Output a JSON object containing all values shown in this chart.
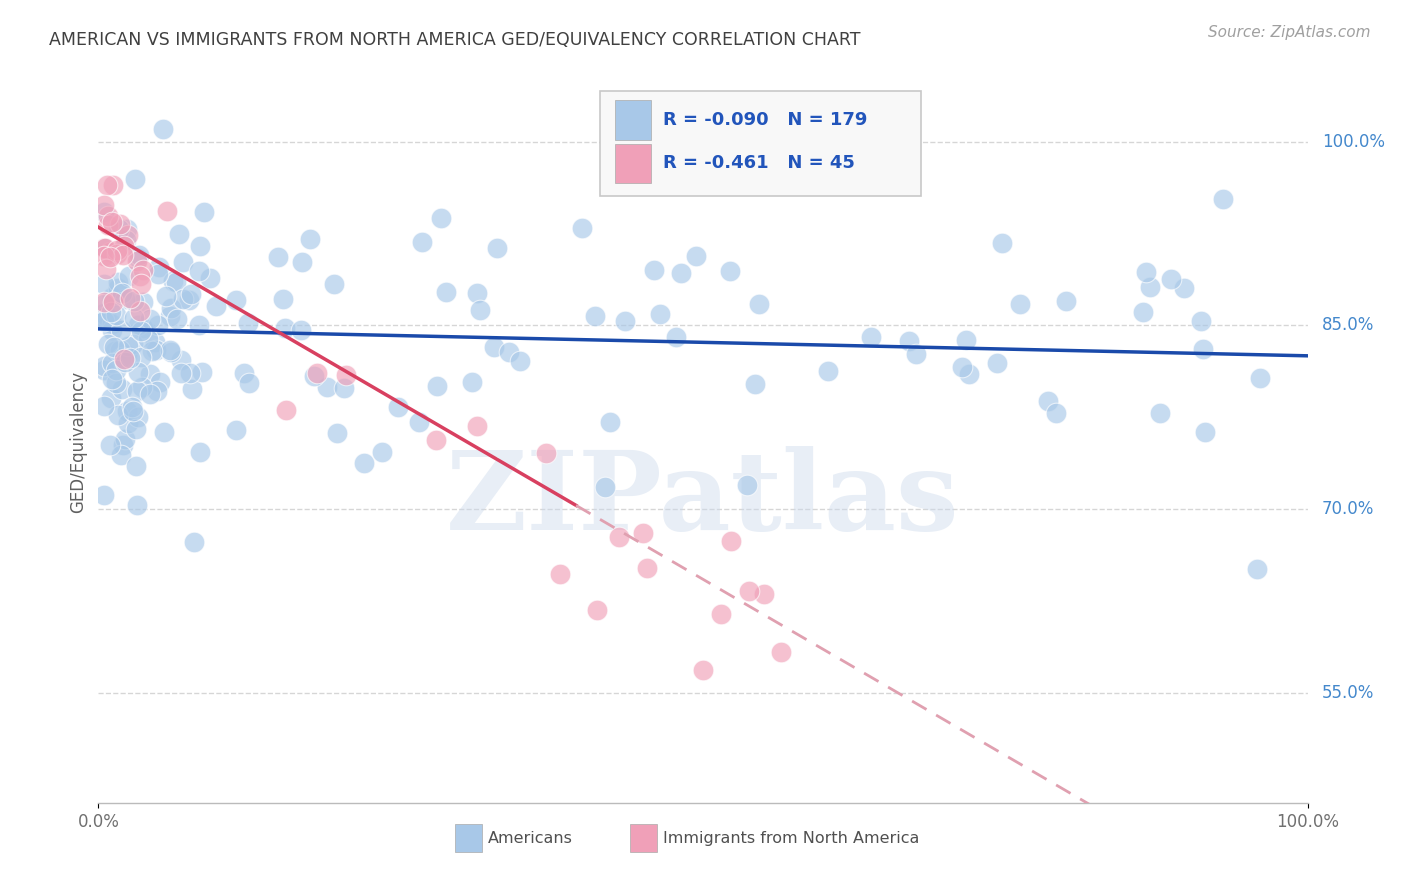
{
  "title": "AMERICAN VS IMMIGRANTS FROM NORTH AMERICA GED/EQUIVALENCY CORRELATION CHART",
  "source": "Source: ZipAtlas.com",
  "ylabel": "GED/Equivalency",
  "watermark": "ZIPatlas",
  "legend_blue_r": "-0.090",
  "legend_blue_n": "179",
  "legend_pink_r": "-0.461",
  "legend_pink_n": "45",
  "blue_color": "#a8c8e8",
  "pink_color": "#f0a0b8",
  "blue_line_color": "#1a4aaa",
  "pink_line_color": "#d84060",
  "pink_dash_color": "#e0a0b0",
  "xlim": [
    0.0,
    1.0
  ],
  "ylim": [
    0.46,
    1.05
  ],
  "ytick_positions": [
    0.55,
    0.7,
    0.85,
    1.0
  ],
  "ytick_labels": [
    "55.0%",
    "70.0%",
    "85.0%",
    "100.0%"
  ],
  "xtick_positions": [
    0.0,
    1.0
  ],
  "xtick_labels": [
    "0.0%",
    "100.0%"
  ],
  "background_color": "#ffffff",
  "grid_color": "#cccccc",
  "title_color": "#404040"
}
